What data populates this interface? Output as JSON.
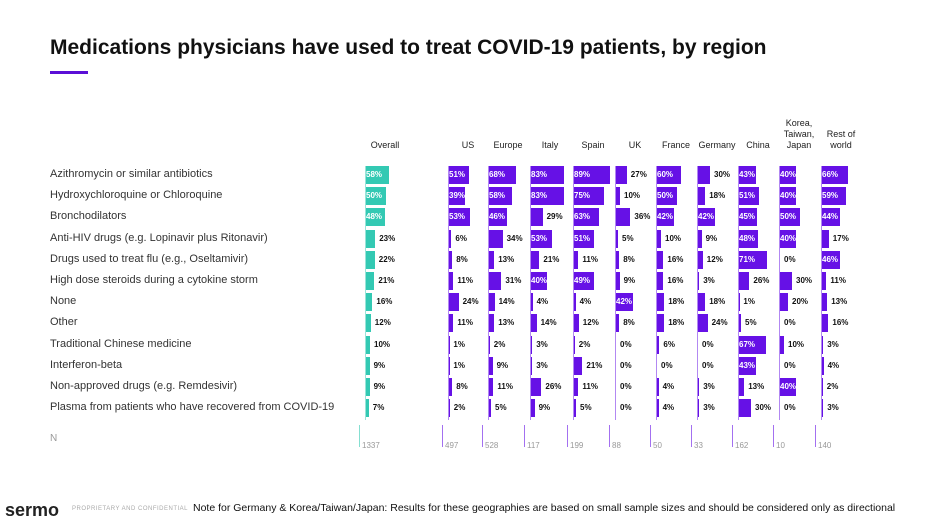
{
  "chart_data": {
    "type": "bar",
    "title": "Medications physicians have used to treat COVID-19 patients, by region",
    "xlim": [
      0,
      100
    ],
    "categories": [
      "Azithromycin or similar antibiotics",
      "Hydroxychloroquine or Chloroquine",
      "Bronchodilators",
      "Anti-HIV drugs (e.g. Lopinavir plus Ritonavir)",
      "Drugs used to treat flu (e.g., Oseltamivir)",
      "High dose steroids during a cytokine storm",
      "None",
      "Other",
      "Traditional Chinese medicine",
      "Interferon-beta",
      "Non-approved drugs (e.g. Remdesivir)",
      "Plasma from patients who have recovered from COVID-19"
    ],
    "n_label": "N",
    "series": [
      {
        "name": "Overall",
        "color": "#33c9b3",
        "n": 1337,
        "values": [
          58,
          50,
          48,
          23,
          22,
          21,
          16,
          12,
          10,
          9,
          9,
          7
        ],
        "value_labels": [
          "58%",
          "50%",
          "48%",
          "23%",
          "22%",
          "21%",
          "16%",
          "12%",
          "10%",
          "9%",
          "9%",
          "7%"
        ]
      },
      {
        "name": "US",
        "color": "#6611e6",
        "n": 497,
        "values": [
          51,
          39,
          53,
          6,
          8,
          11,
          24,
          11,
          1,
          1,
          8,
          2
        ],
        "value_labels": [
          "51%",
          "39%",
          "53%",
          "6%",
          "8%",
          "11%",
          "24%",
          "11%",
          "1%",
          "1%",
          "8%",
          "2%"
        ]
      },
      {
        "name": "Europe",
        "color": "#6611e6",
        "n": 528,
        "values": [
          68,
          58,
          46,
          34,
          13,
          31,
          14,
          13,
          2,
          9,
          11,
          5
        ],
        "value_labels": [
          "68%",
          "58%",
          "46%",
          "34%",
          "13%",
          "31%",
          "14%",
          "13%",
          "2%",
          "9%",
          "11%",
          "5%"
        ]
      },
      {
        "name": "Italy",
        "color": "#6611e6",
        "n": 117,
        "values": [
          83,
          83,
          29,
          53,
          21,
          40,
          4,
          14,
          3,
          3,
          26,
          9
        ],
        "value_labels": [
          "83%",
          "83%",
          "29%",
          "53%",
          "21%",
          "40%",
          "4%",
          "14%",
          "3%",
          "3%",
          "26%",
          "9%"
        ]
      },
      {
        "name": "Spain",
        "color": "#6611e6",
        "n": 199,
        "values": [
          89,
          75,
          63,
          51,
          11,
          49,
          4,
          12,
          2,
          21,
          11,
          5
        ],
        "value_labels": [
          "89%",
          "75%",
          "63%",
          "51%",
          "11%",
          "49%",
          "4%",
          "12%",
          "2%",
          "21%",
          "11%",
          "5%"
        ]
      },
      {
        "name": "UK",
        "color": "#6611e6",
        "n": 88,
        "values": [
          27,
          10,
          36,
          5,
          8,
          9,
          42,
          8,
          0,
          0,
          0,
          0
        ],
        "value_labels": [
          "27%",
          "10%",
          "36%",
          "5%",
          "8%",
          "9%",
          "42%",
          "8%",
          "0%",
          "0%",
          "0%",
          "0%"
        ]
      },
      {
        "name": "France",
        "color": "#6611e6",
        "n": 50,
        "values": [
          60,
          50,
          42,
          10,
          16,
          16,
          18,
          18,
          6,
          0,
          4,
          4
        ],
        "value_labels": [
          "60%",
          "50%",
          "42%",
          "10%",
          "16%",
          "16%",
          "18%",
          "18%",
          "6%",
          "0%",
          "4%",
          "4%"
        ]
      },
      {
        "name": "Germany",
        "color": "#6611e6",
        "n": 33,
        "values": [
          30,
          18,
          42,
          9,
          12,
          3,
          18,
          24,
          0,
          0,
          3,
          3
        ],
        "value_labels": [
          "30%",
          "18%",
          "42%",
          "9%",
          "12%",
          "3%",
          "18%",
          "24%",
          "0%",
          "0%",
          "3%",
          "3%"
        ]
      },
      {
        "name": "China",
        "color": "#6611e6",
        "n": 162,
        "values": [
          43,
          51,
          45,
          48,
          71,
          26,
          1,
          5,
          67,
          43,
          13,
          30
        ],
        "value_labels": [
          "43%",
          "51%",
          "45%",
          "48%",
          "71%",
          "26%",
          "1%",
          "5%",
          "67%",
          "43%",
          "13%",
          "30%"
        ]
      },
      {
        "name": "Korea, Taiwan, Japan",
        "color": "#6611e6",
        "n": 10,
        "values": [
          40,
          40,
          50,
          40,
          0,
          30,
          20,
          0,
          10,
          0,
          40,
          0
        ],
        "value_labels": [
          "40%",
          "40%",
          "50%",
          "40%",
          "0%",
          "30%",
          "20%",
          "0%",
          "10%",
          "0%",
          "40%",
          "0%"
        ]
      },
      {
        "name": "Rest of world",
        "color": "#6611e6",
        "n": 140,
        "values": [
          66,
          59,
          44,
          17,
          46,
          11,
          13,
          16,
          3,
          4,
          2,
          3
        ],
        "value_labels": [
          "66%",
          "59%",
          "44%",
          "17%",
          "46%",
          "11%",
          "13%",
          "16%",
          "3%",
          "4%",
          "2%",
          "3%"
        ]
      }
    ]
  },
  "footer": {
    "logo": "sermo",
    "confidential": "PROPRIETARY AND CONFIDENTIAL",
    "note": "Note for Germany & Korea/Taiwan/Japan: Results for these geographies are based on small sample sizes and should be considered only as directional"
  }
}
